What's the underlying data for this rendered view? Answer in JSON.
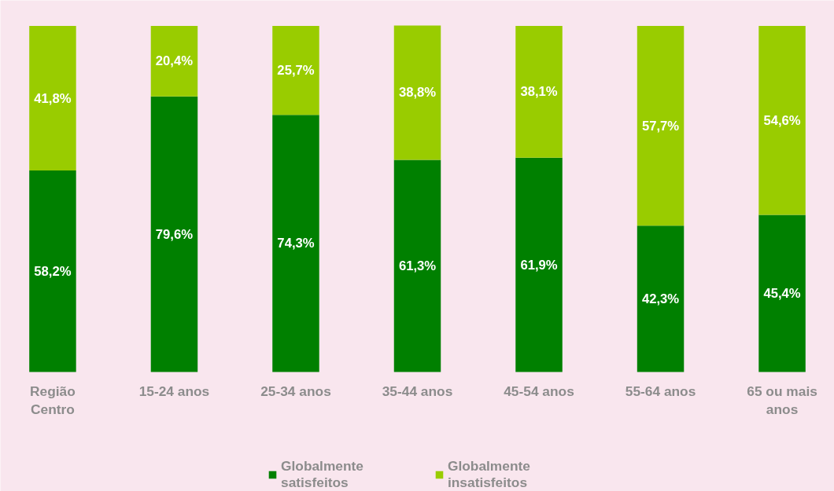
{
  "chart_data": {
    "type": "bar",
    "stacked": true,
    "legend": "bottom",
    "categories": [
      "Região Centro",
      "15-24 anos",
      "25-34 anos",
      "35-44 anos",
      "45-54 anos",
      "55-64 anos",
      "65 ou mais anos"
    ],
    "series": [
      {
        "name": "Globalmente satisfeitos",
        "color": "#008000",
        "values": [
          58.2,
          79.6,
          74.3,
          61.3,
          61.9,
          42.3,
          45.4
        ],
        "value_labels": [
          "58,2%",
          "79,6%",
          "74,3%",
          "61,3%",
          "61,9%",
          "42,3%",
          "45,4%"
        ]
      },
      {
        "name": "Globalmente insatisfeitos",
        "color": "#99cc00",
        "values": [
          41.8,
          20.4,
          25.7,
          38.8,
          38.1,
          57.7,
          54.6
        ],
        "value_labels": [
          "41,8%",
          "20,4%",
          "25,7%",
          "38,8%",
          "38,1%",
          "57,7%",
          "54,6%"
        ]
      }
    ]
  }
}
